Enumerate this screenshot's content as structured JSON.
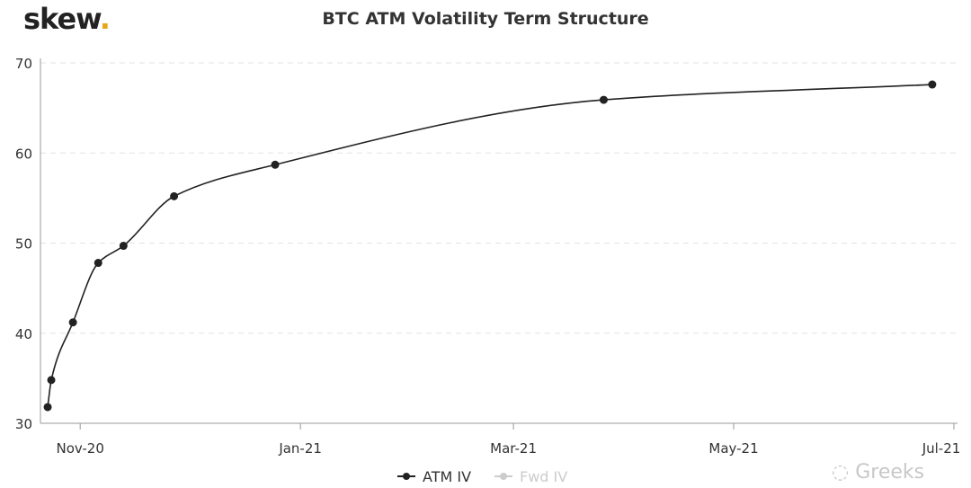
{
  "logo": {
    "text": "skew",
    "dot": "."
  },
  "watermark": "Greeks",
  "chart_data": {
    "type": "line",
    "title": "BTC ATM Volatility Term Structure",
    "xlabel": "",
    "ylabel": "",
    "ylim": [
      30,
      70
    ],
    "xlim": [
      "2020-10-21",
      "2021-07-02"
    ],
    "yticks": [
      30,
      40,
      50,
      60,
      70
    ],
    "xticks": [
      {
        "date": "2020-11-01",
        "label": "Nov-20"
      },
      {
        "date": "2021-01-01",
        "label": "Jan-21"
      },
      {
        "date": "2021-03-01",
        "label": "Mar-21"
      },
      {
        "date": "2021-05-01",
        "label": "May-21"
      },
      {
        "date": "2021-07-01",
        "label": "Jul-21"
      }
    ],
    "grid": "horizontal dashed",
    "legend_position": "bottom",
    "series": [
      {
        "name": "ATM IV",
        "color": "#222222",
        "visible": true,
        "x": [
          "2020-10-23",
          "2020-10-24",
          "2020-10-30",
          "2020-11-06",
          "2020-11-13",
          "2020-11-27",
          "2020-12-25",
          "2021-03-26",
          "2021-06-25"
        ],
        "values": [
          31.8,
          34.8,
          41.2,
          47.8,
          49.7,
          55.2,
          58.7,
          65.9,
          67.6
        ]
      },
      {
        "name": "Fwd IV",
        "color": "#cccccc",
        "visible": false,
        "x": [],
        "values": []
      }
    ]
  }
}
